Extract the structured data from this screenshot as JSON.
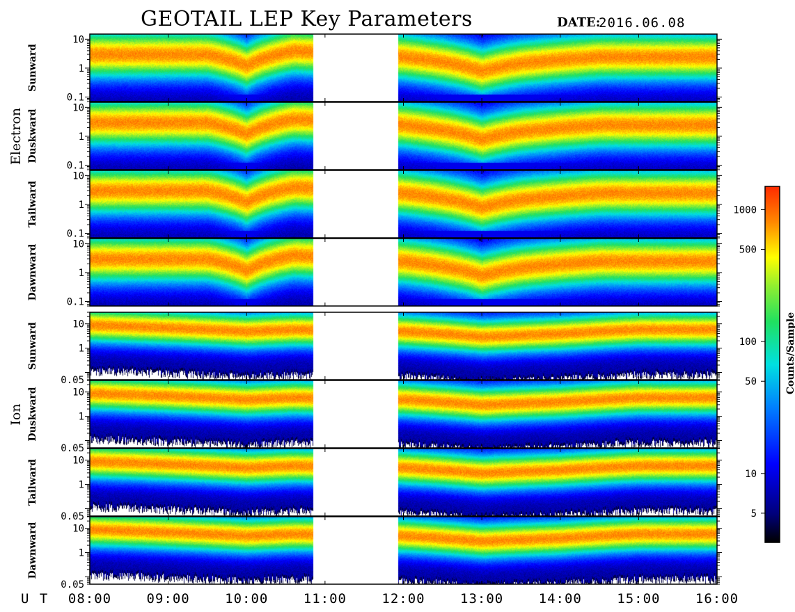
{
  "header": {
    "title": "GEOTAIL LEP Key Parameters",
    "date_label": "DATE:",
    "date_value": "2016.06.08"
  },
  "time_axis": {
    "prefix": "U T",
    "tick_labels": [
      "08:00",
      "09:00",
      "10:00",
      "11:00",
      "12:00",
      "13:00",
      "14:00",
      "15:00",
      "16:00"
    ],
    "range_hours": [
      8,
      16
    ]
  },
  "groups": [
    {
      "label": "Electron"
    },
    {
      "label": "Ion"
    }
  ],
  "colorbar": {
    "label": "Counts/Sample",
    "ticks": [
      "1000",
      "500",
      "100",
      "50",
      "10",
      "5"
    ],
    "tick_values": [
      1000,
      500,
      100,
      50,
      10,
      5
    ],
    "range": [
      3,
      1500
    ],
    "scale": "log"
  },
  "chart_data": {
    "type": "heatmap",
    "title": "GEOTAIL LEP Key Parameters",
    "xlabel": "U T",
    "x_range_hours": [
      8,
      16
    ],
    "data_gaps_hours": [
      [
        10.85,
        11.93
      ]
    ],
    "panels": [
      {
        "group": "Electron",
        "direction": "Sunward",
        "ylim": [
          0.07,
          15
        ],
        "yscale": "log",
        "y_ticks": [
          "10",
          "1",
          "0.1"
        ],
        "peak_energy": [
          [
            8.0,
            3.0
          ],
          [
            9.5,
            3.0
          ],
          [
            10.0,
            1.2
          ],
          [
            10.6,
            4.0
          ],
          [
            12.0,
            2.5
          ],
          [
            13.0,
            0.8
          ],
          [
            13.5,
            1.5
          ],
          [
            14.5,
            2.5
          ],
          [
            16.0,
            2.5
          ]
        ]
      },
      {
        "group": "Electron",
        "direction": "Duskward",
        "ylim": [
          0.07,
          15
        ],
        "yscale": "log",
        "y_ticks": [
          "10",
          "1",
          "0.1"
        ],
        "peak_energy": [
          [
            8.0,
            3.0
          ],
          [
            9.5,
            3.0
          ],
          [
            10.0,
            1.2
          ],
          [
            10.6,
            4.0
          ],
          [
            12.0,
            2.5
          ],
          [
            13.0,
            0.8
          ],
          [
            13.5,
            1.5
          ],
          [
            14.5,
            2.5
          ],
          [
            16.0,
            2.5
          ]
        ]
      },
      {
        "group": "Electron",
        "direction": "Tailward",
        "ylim": [
          0.07,
          15
        ],
        "yscale": "log",
        "y_ticks": [
          "10",
          "1",
          "0.1"
        ],
        "peak_energy": [
          [
            8.0,
            3.0
          ],
          [
            9.5,
            3.0
          ],
          [
            10.0,
            1.2
          ],
          [
            10.6,
            4.0
          ],
          [
            12.0,
            2.5
          ],
          [
            13.0,
            0.8
          ],
          [
            13.5,
            1.5
          ],
          [
            14.5,
            2.5
          ],
          [
            16.0,
            2.5
          ]
        ]
      },
      {
        "group": "Electron",
        "direction": "Dawnward",
        "ylim": [
          0.07,
          15
        ],
        "yscale": "log",
        "y_ticks": [
          "10",
          "1",
          "0.1"
        ],
        "peak_energy": [
          [
            8.0,
            3.0
          ],
          [
            9.5,
            3.0
          ],
          [
            10.0,
            1.2
          ],
          [
            10.6,
            4.0
          ],
          [
            12.0,
            2.5
          ],
          [
            13.0,
            0.8
          ],
          [
            13.5,
            1.5
          ],
          [
            14.5,
            2.5
          ],
          [
            16.0,
            2.5
          ]
        ]
      },
      {
        "group": "Ion",
        "direction": "Sunward",
        "ylim": [
          0.05,
          30
        ],
        "yscale": "log",
        "y_ticks": [
          "10",
          "1",
          "0.05"
        ],
        "peak_energy": [
          [
            8.0,
            9.0
          ],
          [
            10.0,
            5.0
          ],
          [
            10.6,
            6.0
          ],
          [
            12.0,
            5.0
          ],
          [
            13.0,
            3.0
          ],
          [
            14.0,
            4.0
          ],
          [
            15.0,
            6.0
          ],
          [
            16.0,
            6.0
          ]
        ]
      },
      {
        "group": "Ion",
        "direction": "Duskward",
        "ylim": [
          0.05,
          30
        ],
        "yscale": "log",
        "y_ticks": [
          "10",
          "1",
          "0.05"
        ],
        "peak_energy": [
          [
            8.0,
            9.0
          ],
          [
            10.0,
            5.0
          ],
          [
            10.6,
            6.0
          ],
          [
            12.0,
            5.0
          ],
          [
            13.0,
            3.0
          ],
          [
            14.0,
            4.0
          ],
          [
            15.0,
            6.0
          ],
          [
            16.0,
            6.0
          ]
        ]
      },
      {
        "group": "Ion",
        "direction": "Tailward",
        "ylim": [
          0.05,
          30
        ],
        "yscale": "log",
        "y_ticks": [
          "10",
          "1",
          "0.05"
        ],
        "peak_energy": [
          [
            8.0,
            9.0
          ],
          [
            10.0,
            5.0
          ],
          [
            10.6,
            6.0
          ],
          [
            12.0,
            5.0
          ],
          [
            13.0,
            3.0
          ],
          [
            14.0,
            4.0
          ],
          [
            15.0,
            6.0
          ],
          [
            16.0,
            6.0
          ]
        ]
      },
      {
        "group": "Ion",
        "direction": "Dawnward",
        "ylim": [
          0.05,
          30
        ],
        "yscale": "log",
        "y_ticks": [
          "10",
          "1",
          "0.05"
        ],
        "peak_energy": [
          [
            8.0,
            9.0
          ],
          [
            10.0,
            5.0
          ],
          [
            10.6,
            6.0
          ],
          [
            12.0,
            5.0
          ],
          [
            13.0,
            3.0
          ],
          [
            14.0,
            4.0
          ],
          [
            15.0,
            6.0
          ],
          [
            16.0,
            6.0
          ]
        ]
      }
    ]
  }
}
